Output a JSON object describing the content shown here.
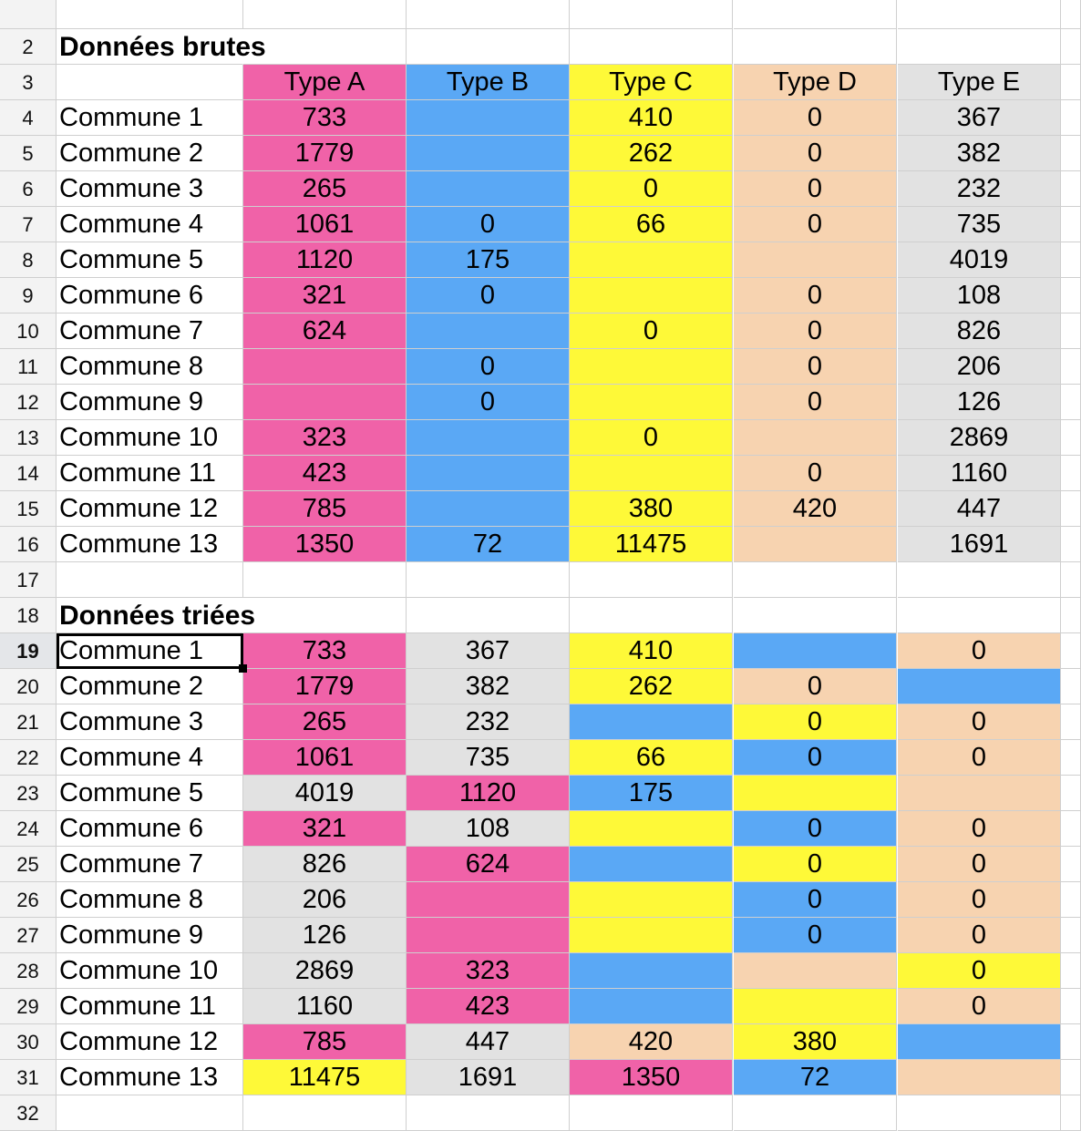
{
  "colors": {
    "pink": "#f062a8",
    "blue": "#5aa8f5",
    "yellow": "#fef938",
    "peach": "#f7d3b0",
    "gray": "#e2e2e2",
    "white": "#ffffff"
  },
  "sheet": {
    "selected_row": "19",
    "raw": {
      "row_labels": {
        "title": "2",
        "header": "3",
        "data": [
          "4",
          "5",
          "6",
          "7",
          "8",
          "9",
          "10",
          "11",
          "12",
          "13",
          "14",
          "15",
          "16"
        ]
      },
      "title": "Données brutes",
      "headers": [
        {
          "text": "Type A",
          "color": "pink"
        },
        {
          "text": "Type B",
          "color": "blue"
        },
        {
          "text": "Type C",
          "color": "yellow"
        },
        {
          "text": "Type D",
          "color": "peach"
        },
        {
          "text": "Type E",
          "color": "gray"
        }
      ],
      "rows": [
        {
          "label": "Commune 1",
          "cells": [
            {
              "v": "733",
              "c": "pink"
            },
            {
              "v": "",
              "c": "blue"
            },
            {
              "v": "410",
              "c": "yellow"
            },
            {
              "v": "0",
              "c": "peach"
            },
            {
              "v": "367",
              "c": "gray"
            }
          ]
        },
        {
          "label": "Commune 2",
          "cells": [
            {
              "v": "1779",
              "c": "pink"
            },
            {
              "v": "",
              "c": "blue"
            },
            {
              "v": "262",
              "c": "yellow"
            },
            {
              "v": "0",
              "c": "peach"
            },
            {
              "v": "382",
              "c": "gray"
            }
          ]
        },
        {
          "label": "Commune 3",
          "cells": [
            {
              "v": "265",
              "c": "pink"
            },
            {
              "v": "",
              "c": "blue"
            },
            {
              "v": "0",
              "c": "yellow"
            },
            {
              "v": "0",
              "c": "peach"
            },
            {
              "v": "232",
              "c": "gray"
            }
          ]
        },
        {
          "label": "Commune 4",
          "cells": [
            {
              "v": "1061",
              "c": "pink"
            },
            {
              "v": "0",
              "c": "blue"
            },
            {
              "v": "66",
              "c": "yellow"
            },
            {
              "v": "0",
              "c": "peach"
            },
            {
              "v": "735",
              "c": "gray"
            }
          ]
        },
        {
          "label": "Commune 5",
          "cells": [
            {
              "v": "1120",
              "c": "pink"
            },
            {
              "v": "175",
              "c": "blue"
            },
            {
              "v": "",
              "c": "yellow"
            },
            {
              "v": "",
              "c": "peach"
            },
            {
              "v": "4019",
              "c": "gray"
            }
          ]
        },
        {
          "label": "Commune 6",
          "cells": [
            {
              "v": "321",
              "c": "pink"
            },
            {
              "v": "0",
              "c": "blue"
            },
            {
              "v": "",
              "c": "yellow"
            },
            {
              "v": "0",
              "c": "peach"
            },
            {
              "v": "108",
              "c": "gray"
            }
          ]
        },
        {
          "label": "Commune 7",
          "cells": [
            {
              "v": "624",
              "c": "pink"
            },
            {
              "v": "",
              "c": "blue"
            },
            {
              "v": "0",
              "c": "yellow"
            },
            {
              "v": "0",
              "c": "peach"
            },
            {
              "v": "826",
              "c": "gray"
            }
          ]
        },
        {
          "label": "Commune 8",
          "cells": [
            {
              "v": "",
              "c": "pink"
            },
            {
              "v": "0",
              "c": "blue"
            },
            {
              "v": "",
              "c": "yellow"
            },
            {
              "v": "0",
              "c": "peach"
            },
            {
              "v": "206",
              "c": "gray"
            }
          ]
        },
        {
          "label": "Commune 9",
          "cells": [
            {
              "v": "",
              "c": "pink"
            },
            {
              "v": "0",
              "c": "blue"
            },
            {
              "v": "",
              "c": "yellow"
            },
            {
              "v": "0",
              "c": "peach"
            },
            {
              "v": "126",
              "c": "gray"
            }
          ]
        },
        {
          "label": "Commune 10",
          "cells": [
            {
              "v": "323",
              "c": "pink"
            },
            {
              "v": "",
              "c": "blue"
            },
            {
              "v": "0",
              "c": "yellow"
            },
            {
              "v": "",
              "c": "peach"
            },
            {
              "v": "2869",
              "c": "gray"
            }
          ]
        },
        {
          "label": "Commune 11",
          "cells": [
            {
              "v": "423",
              "c": "pink"
            },
            {
              "v": "",
              "c": "blue"
            },
            {
              "v": "",
              "c": "yellow"
            },
            {
              "v": "0",
              "c": "peach"
            },
            {
              "v": "1160",
              "c": "gray"
            }
          ]
        },
        {
          "label": "Commune 12",
          "cells": [
            {
              "v": "785",
              "c": "pink"
            },
            {
              "v": "",
              "c": "blue"
            },
            {
              "v": "380",
              "c": "yellow"
            },
            {
              "v": "420",
              "c": "peach"
            },
            {
              "v": "447",
              "c": "gray"
            }
          ]
        },
        {
          "label": "Commune 13",
          "cells": [
            {
              "v": "1350",
              "c": "pink"
            },
            {
              "v": "72",
              "c": "blue"
            },
            {
              "v": "11475",
              "c": "yellow"
            },
            {
              "v": "",
              "c": "peach"
            },
            {
              "v": "1691",
              "c": "gray"
            }
          ]
        }
      ]
    },
    "blank_rows": [
      "17",
      "32"
    ],
    "sorted": {
      "row_labels": {
        "title": "18",
        "data": [
          "19",
          "20",
          "21",
          "22",
          "23",
          "24",
          "25",
          "26",
          "27",
          "28",
          "29",
          "30",
          "31"
        ]
      },
      "title": "Données triées",
      "rows": [
        {
          "label": "Commune 1",
          "cells": [
            {
              "v": "733",
              "c": "pink"
            },
            {
              "v": "367",
              "c": "gray"
            },
            {
              "v": "410",
              "c": "yellow"
            },
            {
              "v": "",
              "c": "blue"
            },
            {
              "v": "0",
              "c": "peach"
            }
          ]
        },
        {
          "label": "Commune 2",
          "cells": [
            {
              "v": "1779",
              "c": "pink"
            },
            {
              "v": "382",
              "c": "gray"
            },
            {
              "v": "262",
              "c": "yellow"
            },
            {
              "v": "0",
              "c": "peach"
            },
            {
              "v": "",
              "c": "blue"
            }
          ]
        },
        {
          "label": "Commune 3",
          "cells": [
            {
              "v": "265",
              "c": "pink"
            },
            {
              "v": "232",
              "c": "gray"
            },
            {
              "v": "",
              "c": "blue"
            },
            {
              "v": "0",
              "c": "yellow"
            },
            {
              "v": "0",
              "c": "peach"
            }
          ]
        },
        {
          "label": "Commune 4",
          "cells": [
            {
              "v": "1061",
              "c": "pink"
            },
            {
              "v": "735",
              "c": "gray"
            },
            {
              "v": "66",
              "c": "yellow"
            },
            {
              "v": "0",
              "c": "blue"
            },
            {
              "v": "0",
              "c": "peach"
            }
          ]
        },
        {
          "label": "Commune 5",
          "cells": [
            {
              "v": "4019",
              "c": "gray"
            },
            {
              "v": "1120",
              "c": "pink"
            },
            {
              "v": "175",
              "c": "blue"
            },
            {
              "v": "",
              "c": "yellow"
            },
            {
              "v": "",
              "c": "peach"
            }
          ]
        },
        {
          "label": "Commune 6",
          "cells": [
            {
              "v": "321",
              "c": "pink"
            },
            {
              "v": "108",
              "c": "gray"
            },
            {
              "v": "",
              "c": "yellow"
            },
            {
              "v": "0",
              "c": "blue"
            },
            {
              "v": "0",
              "c": "peach"
            }
          ]
        },
        {
          "label": "Commune 7",
          "cells": [
            {
              "v": "826",
              "c": "gray"
            },
            {
              "v": "624",
              "c": "pink"
            },
            {
              "v": "",
              "c": "blue"
            },
            {
              "v": "0",
              "c": "yellow"
            },
            {
              "v": "0",
              "c": "peach"
            }
          ]
        },
        {
          "label": "Commune 8",
          "cells": [
            {
              "v": "206",
              "c": "gray"
            },
            {
              "v": "",
              "c": "pink"
            },
            {
              "v": "",
              "c": "yellow"
            },
            {
              "v": "0",
              "c": "blue"
            },
            {
              "v": "0",
              "c": "peach"
            }
          ]
        },
        {
          "label": "Commune 9",
          "cells": [
            {
              "v": "126",
              "c": "gray"
            },
            {
              "v": "",
              "c": "pink"
            },
            {
              "v": "",
              "c": "yellow"
            },
            {
              "v": "0",
              "c": "blue"
            },
            {
              "v": "0",
              "c": "peach"
            }
          ]
        },
        {
          "label": "Commune 10",
          "cells": [
            {
              "v": "2869",
              "c": "gray"
            },
            {
              "v": "323",
              "c": "pink"
            },
            {
              "v": "",
              "c": "blue"
            },
            {
              "v": "",
              "c": "peach"
            },
            {
              "v": "0",
              "c": "yellow"
            }
          ]
        },
        {
          "label": "Commune 11",
          "cells": [
            {
              "v": "1160",
              "c": "gray"
            },
            {
              "v": "423",
              "c": "pink"
            },
            {
              "v": "",
              "c": "blue"
            },
            {
              "v": "",
              "c": "yellow"
            },
            {
              "v": "0",
              "c": "peach"
            }
          ]
        },
        {
          "label": "Commune 12",
          "cells": [
            {
              "v": "785",
              "c": "pink"
            },
            {
              "v": "447",
              "c": "gray"
            },
            {
              "v": "420",
              "c": "peach"
            },
            {
              "v": "380",
              "c": "yellow"
            },
            {
              "v": "",
              "c": "blue"
            }
          ]
        },
        {
          "label": "Commune 13",
          "cells": [
            {
              "v": "11475",
              "c": "yellow"
            },
            {
              "v": "1691",
              "c": "gray"
            },
            {
              "v": "1350",
              "c": "pink"
            },
            {
              "v": "72",
              "c": "blue"
            },
            {
              "v": "",
              "c": "peach"
            }
          ]
        }
      ]
    }
  }
}
